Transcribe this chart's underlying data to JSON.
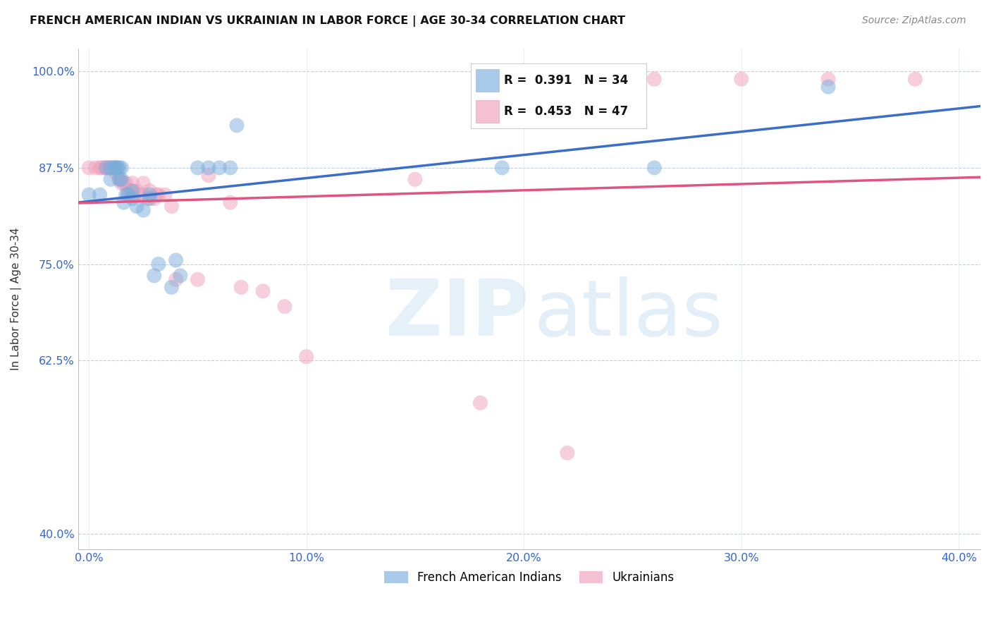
{
  "title": "FRENCH AMERICAN INDIAN VS UKRAINIAN IN LABOR FORCE | AGE 30-34 CORRELATION CHART",
  "source": "Source: ZipAtlas.com",
  "ylabel": "In Labor Force | Age 30-34",
  "xlim": [
    -0.5,
    41.0
  ],
  "ylim": [
    38.0,
    103.0
  ],
  "xtick_values": [
    0,
    10,
    20,
    30,
    40
  ],
  "xtick_labels": [
    "0.0%",
    "10.0%",
    "20.0%",
    "30.0%",
    "40.0%"
  ],
  "ytick_values": [
    40.0,
    62.5,
    75.0,
    87.5,
    100.0
  ],
  "ytick_labels": [
    "40.0%",
    "62.5%",
    "75.0%",
    "87.5%",
    "100.0%"
  ],
  "blue_R": 0.391,
  "blue_N": 34,
  "pink_R": 0.453,
  "pink_N": 47,
  "blue_color": "#7aaddb",
  "pink_color": "#f0a0bb",
  "blue_line_color": "#3a6ec8",
  "pink_line_color": "#e05580",
  "legend_label_blue": "French American Indians",
  "legend_label_pink": "Ukrainians",
  "blue_x": [
    0.0,
    0.5,
    0.8,
    1.0,
    1.0,
    1.2,
    1.2,
    1.3,
    1.4,
    1.4,
    1.5,
    1.5,
    1.6,
    1.7,
    1.8,
    2.0,
    2.0,
    2.2,
    2.5,
    2.8,
    2.8,
    3.0,
    3.2,
    3.8,
    4.0,
    4.2,
    5.0,
    5.5,
    6.0,
    6.5,
    6.8,
    19.0,
    26.0,
    34.0
  ],
  "blue_y": [
    84.0,
    84.0,
    87.5,
    87.5,
    86.0,
    87.5,
    87.5,
    87.5,
    87.5,
    86.0,
    87.5,
    86.0,
    83.0,
    84.0,
    84.0,
    83.5,
    84.5,
    82.5,
    82.0,
    84.0,
    83.5,
    73.5,
    75.0,
    72.0,
    75.5,
    73.5,
    87.5,
    87.5,
    87.5,
    87.5,
    93.0,
    87.5,
    87.5,
    98.0
  ],
  "pink_x": [
    0.0,
    0.3,
    0.5,
    0.6,
    0.7,
    0.8,
    0.9,
    1.0,
    1.0,
    1.1,
    1.2,
    1.2,
    1.3,
    1.4,
    1.5,
    1.6,
    1.7,
    1.8,
    1.9,
    2.0,
    2.0,
    2.2,
    2.3,
    2.5,
    2.5,
    2.7,
    2.8,
    3.0,
    3.1,
    3.2,
    3.5,
    3.8,
    4.0,
    5.0,
    5.5,
    6.5,
    7.0,
    8.0,
    9.0,
    10.0,
    15.0,
    18.0,
    22.0,
    26.0,
    30.0,
    34.0,
    38.0
  ],
  "pink_y": [
    87.5,
    87.5,
    87.5,
    87.5,
    87.5,
    87.5,
    87.5,
    87.5,
    87.5,
    87.5,
    87.5,
    87.0,
    87.5,
    86.0,
    85.5,
    85.5,
    85.5,
    84.5,
    84.5,
    84.0,
    85.5,
    84.5,
    84.0,
    84.0,
    85.5,
    83.5,
    84.5,
    83.5,
    84.0,
    84.0,
    84.0,
    82.5,
    73.0,
    73.0,
    86.5,
    83.0,
    72.0,
    71.5,
    69.5,
    63.0,
    86.0,
    57.0,
    50.5,
    99.0,
    99.0,
    99.0,
    99.0
  ]
}
